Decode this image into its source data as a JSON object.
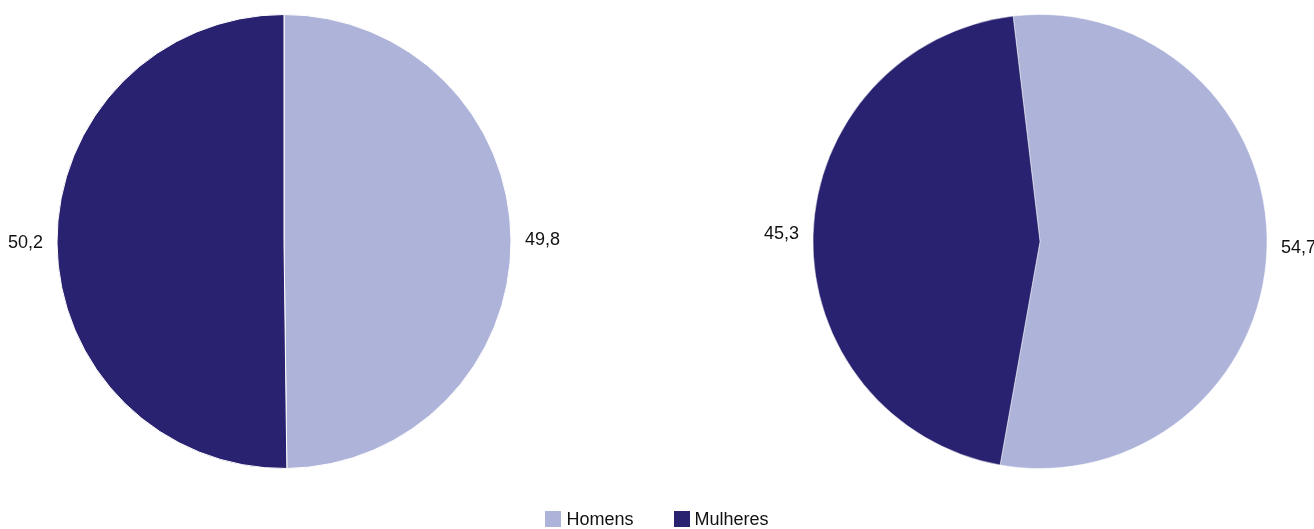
{
  "chart_data": [
    {
      "type": "pie",
      "categories": [
        "Homens",
        "Mulheres"
      ],
      "values": [
        49.8,
        50.2
      ],
      "colors": [
        "#aeb3d9",
        "#282270"
      ],
      "value_labels": [
        "49,8",
        "50,2"
      ],
      "legend": "bottom"
    },
    {
      "type": "pie",
      "categories": [
        null,
        null
      ],
      "values": [
        54.7,
        45.3
      ],
      "colors": [
        "#aeb3d9",
        "#282270"
      ],
      "value_labels": [
        "54,7",
        "45,3"
      ]
    }
  ]
}
